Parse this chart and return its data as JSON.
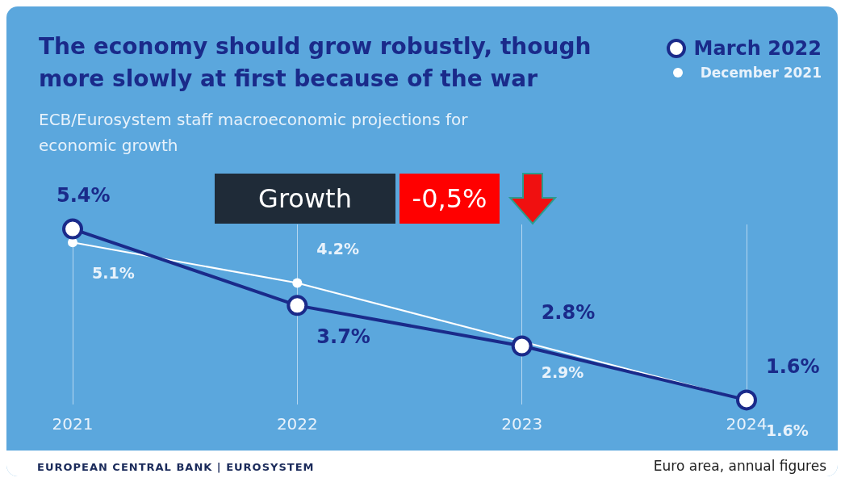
{
  "chart_data": {
    "type": "line",
    "title": "The economy should grow robustly, though more slowly at first because of the war",
    "subtitle": "ECB/Eurosystem staff macroeconomic projections for economic growth",
    "categories": [
      "2021",
      "2022",
      "2023",
      "2024"
    ],
    "series": [
      {
        "name": "March 2022",
        "color": "#1a2a8a",
        "values": [
          5.4,
          3.7,
          2.8,
          1.6
        ],
        "value_labels": [
          "5.4%",
          "3.7%",
          "2.8%",
          "1.6%"
        ]
      },
      {
        "name": "December 2021",
        "color": "#ffffff",
        "values": [
          5.1,
          4.2,
          2.9,
          1.6
        ],
        "value_labels": [
          "5.1%",
          "4.2%",
          "2.9%",
          "1.6%"
        ]
      }
    ],
    "legend": "top right",
    "grid": "x",
    "marker": "circle",
    "annotations": [
      "Growth",
      "-0,5%",
      "EUROPEAN CENTRAL BANK | EUROSYSTEM",
      "Euro area, annual figures"
    ]
  }
}
